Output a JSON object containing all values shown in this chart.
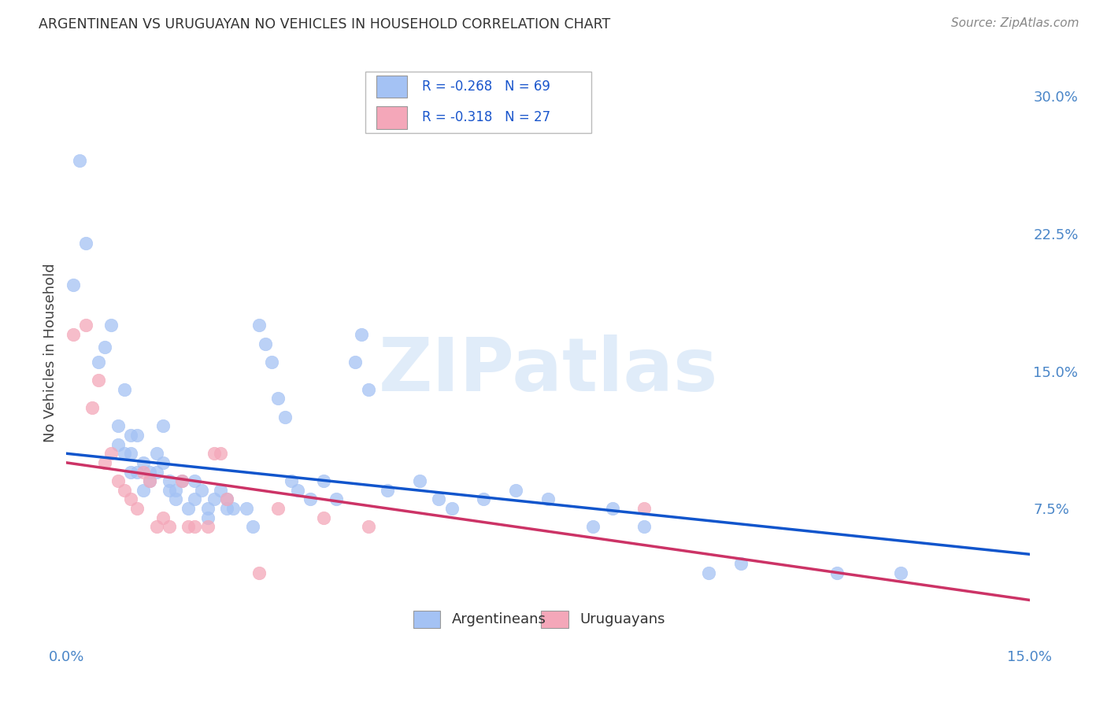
{
  "title": "ARGENTINEAN VS URUGUAYAN NO VEHICLES IN HOUSEHOLD CORRELATION CHART",
  "source": "Source: ZipAtlas.com",
  "ylabel": "No Vehicles in Household",
  "x_min": 0.0,
  "x_max": 0.15,
  "y_min": 0.0,
  "y_max": 0.32,
  "x_ticks": [
    0.0,
    0.05,
    0.1,
    0.15
  ],
  "x_tick_labels": [
    "0.0%",
    "",
    "",
    "15.0%"
  ],
  "y_ticks_right": [
    0.075,
    0.15,
    0.225,
    0.3
  ],
  "y_tick_labels_right": [
    "7.5%",
    "15.0%",
    "22.5%",
    "30.0%"
  ],
  "blue_color": "#a4c2f4",
  "pink_color": "#f4a7b9",
  "blue_line_color": "#1155cc",
  "pink_line_color": "#cc3366",
  "legend_label_blue": "Argentineans",
  "legend_label_pink": "Uruguayans",
  "watermark": "ZIPatlas",
  "background_color": "#ffffff",
  "grid_color": "#c0c0c0",
  "blue_line_start_y": 0.105,
  "blue_line_end_y": 0.05,
  "pink_line_start_y": 0.1,
  "pink_line_end_y": 0.025,
  "blue_scatter": [
    [
      0.001,
      0.197
    ],
    [
      0.002,
      0.265
    ],
    [
      0.003,
      0.22
    ],
    [
      0.005,
      0.155
    ],
    [
      0.006,
      0.163
    ],
    [
      0.007,
      0.175
    ],
    [
      0.008,
      0.12
    ],
    [
      0.008,
      0.11
    ],
    [
      0.009,
      0.14
    ],
    [
      0.009,
      0.105
    ],
    [
      0.01,
      0.105
    ],
    [
      0.01,
      0.095
    ],
    [
      0.01,
      0.115
    ],
    [
      0.011,
      0.115
    ],
    [
      0.011,
      0.095
    ],
    [
      0.012,
      0.1
    ],
    [
      0.012,
      0.085
    ],
    [
      0.013,
      0.09
    ],
    [
      0.013,
      0.095
    ],
    [
      0.014,
      0.095
    ],
    [
      0.014,
      0.105
    ],
    [
      0.015,
      0.1
    ],
    [
      0.015,
      0.12
    ],
    [
      0.016,
      0.09
    ],
    [
      0.016,
      0.085
    ],
    [
      0.017,
      0.085
    ],
    [
      0.017,
      0.08
    ],
    [
      0.018,
      0.09
    ],
    [
      0.019,
      0.075
    ],
    [
      0.02,
      0.09
    ],
    [
      0.02,
      0.08
    ],
    [
      0.021,
      0.085
    ],
    [
      0.022,
      0.075
    ],
    [
      0.022,
      0.07
    ],
    [
      0.023,
      0.08
    ],
    [
      0.024,
      0.085
    ],
    [
      0.025,
      0.08
    ],
    [
      0.025,
      0.075
    ],
    [
      0.026,
      0.075
    ],
    [
      0.028,
      0.075
    ],
    [
      0.029,
      0.065
    ],
    [
      0.03,
      0.175
    ],
    [
      0.031,
      0.165
    ],
    [
      0.032,
      0.155
    ],
    [
      0.033,
      0.135
    ],
    [
      0.034,
      0.125
    ],
    [
      0.035,
      0.09
    ],
    [
      0.036,
      0.085
    ],
    [
      0.038,
      0.08
    ],
    [
      0.04,
      0.09
    ],
    [
      0.042,
      0.08
    ],
    [
      0.045,
      0.155
    ],
    [
      0.046,
      0.17
    ],
    [
      0.047,
      0.14
    ],
    [
      0.05,
      0.085
    ],
    [
      0.055,
      0.09
    ],
    [
      0.058,
      0.08
    ],
    [
      0.06,
      0.075
    ],
    [
      0.065,
      0.08
    ],
    [
      0.07,
      0.085
    ],
    [
      0.075,
      0.08
    ],
    [
      0.082,
      0.065
    ],
    [
      0.085,
      0.075
    ],
    [
      0.09,
      0.065
    ],
    [
      0.1,
      0.04
    ],
    [
      0.105,
      0.045
    ],
    [
      0.12,
      0.04
    ],
    [
      0.13,
      0.04
    ]
  ],
  "pink_scatter": [
    [
      0.001,
      0.17
    ],
    [
      0.003,
      0.175
    ],
    [
      0.004,
      0.13
    ],
    [
      0.005,
      0.145
    ],
    [
      0.006,
      0.1
    ],
    [
      0.007,
      0.105
    ],
    [
      0.008,
      0.09
    ],
    [
      0.009,
      0.085
    ],
    [
      0.01,
      0.08
    ],
    [
      0.011,
      0.075
    ],
    [
      0.012,
      0.095
    ],
    [
      0.013,
      0.09
    ],
    [
      0.014,
      0.065
    ],
    [
      0.015,
      0.07
    ],
    [
      0.016,
      0.065
    ],
    [
      0.018,
      0.09
    ],
    [
      0.019,
      0.065
    ],
    [
      0.02,
      0.065
    ],
    [
      0.022,
      0.065
    ],
    [
      0.023,
      0.105
    ],
    [
      0.024,
      0.105
    ],
    [
      0.025,
      0.08
    ],
    [
      0.03,
      0.04
    ],
    [
      0.033,
      0.075
    ],
    [
      0.04,
      0.07
    ],
    [
      0.047,
      0.065
    ],
    [
      0.09,
      0.075
    ]
  ]
}
